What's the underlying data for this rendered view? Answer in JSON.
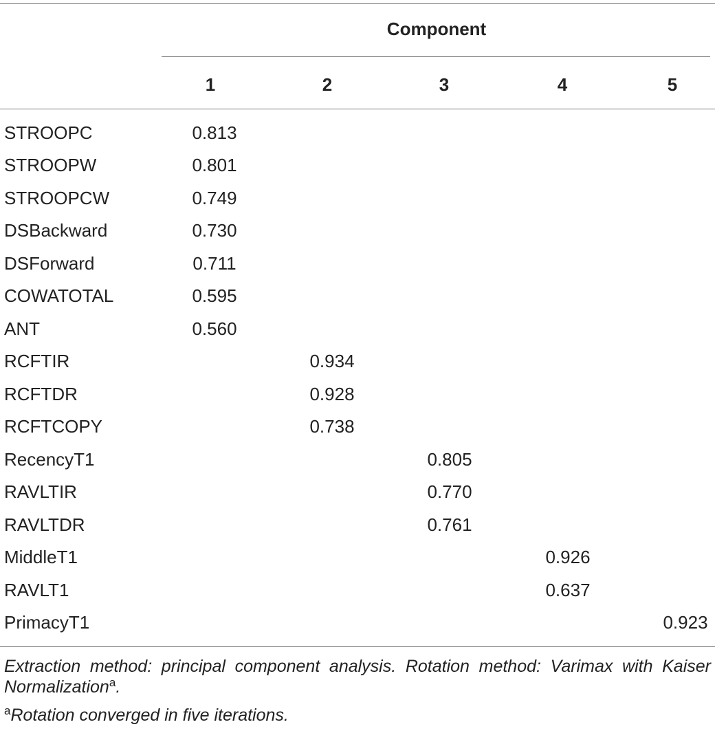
{
  "header": {
    "title": "Component",
    "columns": [
      "1",
      "2",
      "3",
      "4",
      "5"
    ]
  },
  "table": {
    "rows": [
      [
        "STROOPC",
        "0.813",
        null,
        null,
        null,
        null
      ],
      [
        "STROOPW",
        "0.801",
        null,
        null,
        null,
        null
      ],
      [
        "STROOPCW",
        "0.749",
        null,
        null,
        null,
        null
      ],
      [
        "DSBackward",
        "0.730",
        null,
        null,
        null,
        null
      ],
      [
        "DSForward",
        "0.711",
        null,
        null,
        null,
        null
      ],
      [
        "COWATOTAL",
        "0.595",
        null,
        null,
        null,
        null
      ],
      [
        "ANT",
        "0.560",
        null,
        null,
        null,
        null
      ],
      [
        "RCFTIR",
        null,
        "0.934",
        null,
        null,
        null
      ],
      [
        "RCFTDR",
        null,
        "0.928",
        null,
        null,
        null
      ],
      [
        "RCFTCOPY",
        null,
        "0.738",
        null,
        null,
        null
      ],
      [
        "RecencyT1",
        null,
        null,
        "0.805",
        null,
        null
      ],
      [
        "RAVLTIR",
        null,
        null,
        "0.770",
        null,
        null
      ],
      [
        "RAVLTDR",
        null,
        null,
        "0.761",
        null,
        null
      ],
      [
        "MiddleT1",
        null,
        null,
        null,
        "0.926",
        null
      ],
      [
        "RAVLT1",
        null,
        null,
        null,
        "0.637",
        null
      ],
      [
        "PrimacyT1",
        null,
        null,
        null,
        null,
        "0.923"
      ]
    ]
  },
  "notes": {
    "method": "Extraction method: principal component analysis. Rotation method: Varimax with Kaiser Normalization",
    "method_marker": "a",
    "method_end": ".",
    "footnote_marker": "a",
    "footnote": "Rotation converged in five iterations."
  }
}
